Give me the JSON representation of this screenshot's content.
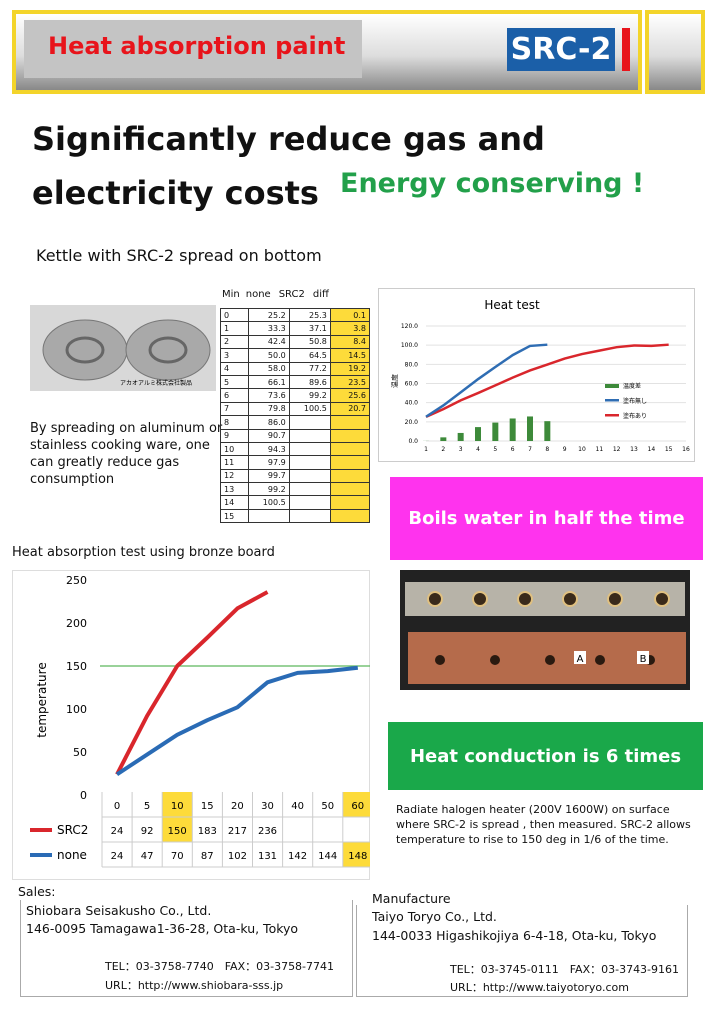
{
  "header": {
    "title": "Heat absorption paint",
    "logo": "SRC-2"
  },
  "headline": {
    "lines": [
      "Significantly reduce gas and",
      "electricity costs"
    ],
    "tagline": "Energy conserving !"
  },
  "kettle": {
    "caption": "Kettle with SRC-2 spread on bottom",
    "photo_credit": "アカオアルミ株式会社製品",
    "description": "By spreading on aluminum or stainless cooking ware, one can greatly reduce gas consumption"
  },
  "table": {
    "columns": [
      "Min",
      "none",
      "SRC2",
      "diff"
    ],
    "rows": [
      [
        "0",
        "25.2",
        "25.3",
        "0.1"
      ],
      [
        "1",
        "33.3",
        "37.1",
        "3.8"
      ],
      [
        "2",
        "42.4",
        "50.8",
        "8.4"
      ],
      [
        "3",
        "50.0",
        "64.5",
        "14.5"
      ],
      [
        "4",
        "58.0",
        "77.2",
        "19.2"
      ],
      [
        "5",
        "66.1",
        "89.6",
        "23.5"
      ],
      [
        "6",
        "73.6",
        "99.2",
        "25.6"
      ],
      [
        "7",
        "79.8",
        "100.5",
        "20.7"
      ],
      [
        "8",
        "86.0",
        null,
        null
      ],
      [
        "9",
        "90.7",
        null,
        null
      ],
      [
        "10",
        "94.3",
        null,
        null
      ],
      [
        "11",
        "97.9",
        null,
        null
      ],
      [
        "12",
        "99.7",
        null,
        null
      ],
      [
        "13",
        "99.2",
        null,
        null
      ],
      [
        "14",
        "100.5",
        null,
        null
      ],
      [
        "15",
        null,
        null,
        null
      ]
    ]
  },
  "heat_test": {
    "title": "Heat test",
    "y_label": "温度",
    "xlim": [
      1,
      16
    ],
    "ylim": [
      0,
      120
    ],
    "xticks": [
      1,
      2,
      3,
      4,
      5,
      6,
      7,
      8,
      9,
      10,
      11,
      12,
      13,
      14,
      15,
      16
    ],
    "yticks": [
      {
        "value": 0,
        "label": "0.0"
      },
      {
        "value": 20,
        "label": "20.0"
      },
      {
        "value": 40,
        "label": "40.0"
      },
      {
        "value": 60,
        "label": "60.0"
      },
      {
        "value": 80,
        "label": "80.0"
      },
      {
        "value": 100,
        "label": "100.0"
      },
      {
        "value": 120,
        "label": "120.0"
      }
    ],
    "legend": [
      {
        "name": "温度差",
        "color": "#3d8a3a"
      },
      {
        "name": "塗布無し",
        "color": "#2f6db3"
      },
      {
        "name": "塗布あり",
        "color": "#d9262c"
      }
    ]
  },
  "boils_banner": "Boils water in half the time",
  "bronze_test": {
    "title": "Heat absorption test using bronze board",
    "y_label": "temperature",
    "ylim": [
      0,
      250
    ],
    "yticks": [
      0,
      50,
      100,
      150,
      200,
      250
    ],
    "reference": 150,
    "categories": [
      "0",
      "5",
      "10",
      "15",
      "20",
      "30",
      "40",
      "50",
      "60"
    ],
    "series": [
      {
        "name": "SRC2",
        "color": "#d9262c",
        "values": [
          24,
          92,
          150,
          183,
          217,
          236,
          null,
          null,
          null
        ]
      },
      {
        "name": "none",
        "color": "#2a6bb5",
        "values": [
          24,
          47,
          70,
          87,
          102,
          131,
          142,
          144,
          148
        ]
      }
    ]
  },
  "bronze_photo": {
    "labels": [
      "A",
      "B"
    ]
  },
  "conduction_banner": "Heat conduction is 6 times",
  "conduction_text": "Radiate halogen heater (200V 1600W) on surface where SRC-2 is spread , then measured. SRC-2 allows temperature to rise to 150 deg in 1/6 of the time.",
  "sales": {
    "heading": "Sales:",
    "company": "Shiobara Seisakusho Co., Ltd.",
    "address": "146-0095  Tamagawa1-36-28, Ota-ku, Tokyo",
    "tel": "TEL：03-3758-7740　FAX：03-3758-7741",
    "url": "URL：http://www.shiobara-sss.jp"
  },
  "manufacture": {
    "heading": "Manufacture",
    "company": "Taiyo Toryo Co., Ltd.",
    "address": "144-0033  Higashikojiya 6-4-18, Ota-ku, Tokyo",
    "tel": "TEL：03-3745-0111　FAX：03-3743-9161",
    "url": "URL：http://www.taiyotoryo.com"
  }
}
